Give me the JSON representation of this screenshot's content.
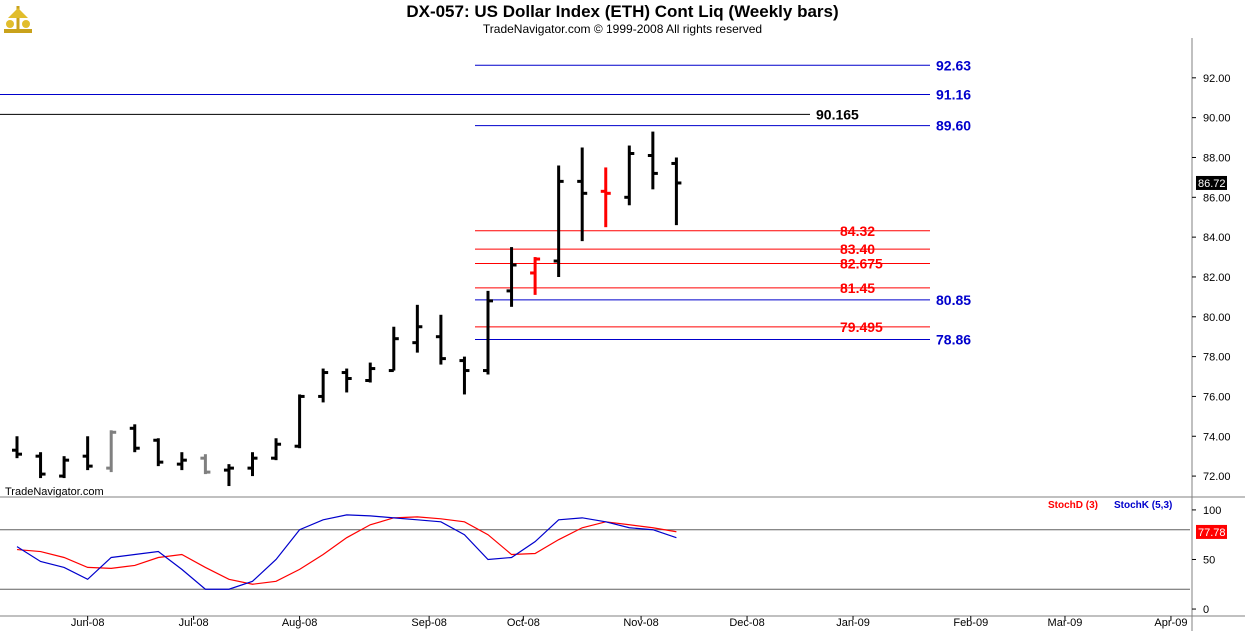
{
  "header": {
    "title": "DX-057:  US Dollar Index (ETH) Cont Liq  (Weekly bars)",
    "subtitle": "TradeNavigator.com © 1999-2008 All rights reserved"
  },
  "watermark": "TradeNavigator.com",
  "chart_data": [
    {
      "type": "ohlc",
      "ylim": [
        71,
        94
      ],
      "y_ticks": [
        "72.00",
        "74.00",
        "76.00",
        "78.00",
        "80.00",
        "82.00",
        "84.00",
        "86.00",
        "88.00",
        "90.00",
        "92.00"
      ],
      "x_ticks": [
        {
          "label": "Jun-08",
          "week": 3
        },
        {
          "label": "Jul-08",
          "week": 7.5
        },
        {
          "label": "Aug-08",
          "week": 12
        },
        {
          "label": "Sep-08",
          "week": 17.5
        },
        {
          "label": "Oct-08",
          "week": 21.5
        },
        {
          "label": "Nov-08",
          "week": 26.5
        },
        {
          "label": "Dec-08",
          "week": 31
        },
        {
          "label": "Jan-09",
          "week": 35.5
        },
        {
          "label": "Feb-09",
          "week": 40.5
        },
        {
          "label": "Mar-09",
          "week": 44.5
        },
        {
          "label": "Apr-09",
          "week": 49
        }
      ],
      "last_price": "86.72",
      "colors": {
        "up": "#000000",
        "down": "#000000",
        "red": "#ff0000",
        "gray": "#808080"
      },
      "bars": [
        {
          "o": 73.3,
          "h": 74.0,
          "l": 72.9,
          "c": 73.1,
          "color": "#000000"
        },
        {
          "o": 73.0,
          "h": 73.2,
          "l": 71.9,
          "c": 72.1,
          "color": "#000000"
        },
        {
          "o": 72.0,
          "h": 73.0,
          "l": 71.9,
          "c": 72.8,
          "color": "#000000"
        },
        {
          "o": 73.0,
          "h": 74.0,
          "l": 72.3,
          "c": 72.5,
          "color": "#000000"
        },
        {
          "o": 72.4,
          "h": 74.3,
          "l": 72.2,
          "c": 74.2,
          "color": "#808080"
        },
        {
          "o": 74.4,
          "h": 74.6,
          "l": 73.2,
          "c": 73.4,
          "color": "#000000"
        },
        {
          "o": 73.8,
          "h": 73.9,
          "l": 72.5,
          "c": 72.7,
          "color": "#000000"
        },
        {
          "o": 72.6,
          "h": 73.2,
          "l": 72.3,
          "c": 72.8,
          "color": "#000000"
        },
        {
          "o": 72.9,
          "h": 73.1,
          "l": 72.1,
          "c": 72.2,
          "color": "#808080"
        },
        {
          "o": 72.3,
          "h": 72.6,
          "l": 71.5,
          "c": 72.4,
          "color": "#000000"
        },
        {
          "o": 72.4,
          "h": 73.2,
          "l": 72.0,
          "c": 72.9,
          "color": "#000000"
        },
        {
          "o": 72.9,
          "h": 73.9,
          "l": 72.8,
          "c": 73.6,
          "color": "#000000"
        },
        {
          "o": 73.5,
          "h": 76.1,
          "l": 73.4,
          "c": 76.0,
          "color": "#000000"
        },
        {
          "o": 76.0,
          "h": 77.4,
          "l": 75.7,
          "c": 77.2,
          "color": "#000000"
        },
        {
          "o": 77.2,
          "h": 77.4,
          "l": 76.2,
          "c": 76.9,
          "color": "#000000"
        },
        {
          "o": 76.8,
          "h": 77.7,
          "l": 76.7,
          "c": 77.4,
          "color": "#000000"
        },
        {
          "o": 77.3,
          "h": 79.5,
          "l": 77.3,
          "c": 78.9,
          "color": "#000000"
        },
        {
          "o": 78.7,
          "h": 80.6,
          "l": 78.2,
          "c": 79.5,
          "color": "#000000"
        },
        {
          "o": 79.0,
          "h": 80.1,
          "l": 77.6,
          "c": 77.9,
          "color": "#000000"
        },
        {
          "o": 77.8,
          "h": 78.0,
          "l": 76.1,
          "c": 77.3,
          "color": "#000000"
        },
        {
          "o": 77.3,
          "h": 81.3,
          "l": 77.1,
          "c": 80.8,
          "color": "#000000"
        },
        {
          "o": 81.3,
          "h": 83.5,
          "l": 80.5,
          "c": 82.6,
          "color": "#000000"
        },
        {
          "o": 82.2,
          "h": 83.0,
          "l": 81.1,
          "c": 82.9,
          "color": "#ff0000"
        },
        {
          "o": 82.8,
          "h": 87.6,
          "l": 82.0,
          "c": 86.8,
          "color": "#000000"
        },
        {
          "o": 86.8,
          "h": 88.5,
          "l": 83.8,
          "c": 86.2,
          "color": "#000000"
        },
        {
          "o": 86.3,
          "h": 87.5,
          "l": 84.5,
          "c": 86.2,
          "color": "#ff0000"
        },
        {
          "o": 86.0,
          "h": 88.6,
          "l": 85.6,
          "c": 88.2,
          "color": "#000000"
        },
        {
          "o": 88.1,
          "h": 89.3,
          "l": 86.4,
          "c": 87.2,
          "color": "#000000"
        },
        {
          "o": 87.7,
          "h": 88.0,
          "l": 84.6,
          "c": 86.72,
          "color": "#000000"
        }
      ],
      "levels": [
        {
          "value": 92.63,
          "label": "92.63",
          "color": "#0000cc",
          "start": "recent"
        },
        {
          "value": 91.16,
          "label": "91.16",
          "color": "#0000cc",
          "start": "full"
        },
        {
          "value": 90.165,
          "label": "90.165",
          "color": "#000000",
          "start": "full"
        },
        {
          "value": 89.6,
          "label": "89.60",
          "color": "#0000cc",
          "start": "recent"
        },
        {
          "value": 84.32,
          "label": "84.32",
          "color": "#ff0000",
          "start": "recent"
        },
        {
          "value": 83.4,
          "label": "83.40",
          "color": "#ff0000",
          "start": "recent"
        },
        {
          "value": 82.675,
          "label": "82.675",
          "color": "#ff0000",
          "start": "recent"
        },
        {
          "value": 81.45,
          "label": "81.45",
          "color": "#ff0000",
          "start": "recent"
        },
        {
          "value": 80.85,
          "label": "80.85",
          "color": "#0000cc",
          "start": "recent"
        },
        {
          "value": 79.495,
          "label": "79.495",
          "color": "#ff0000",
          "start": "recent"
        },
        {
          "value": 78.86,
          "label": "78.86",
          "color": "#0000cc",
          "start": "recent"
        }
      ]
    },
    {
      "type": "line",
      "ylim": [
        -5,
        110
      ],
      "y_ticks": [
        "0",
        "50",
        "100"
      ],
      "ref_lines": [
        80,
        20
      ],
      "last_value": "77.78",
      "series": [
        {
          "name": "StochD (3)",
          "color": "#ff0000",
          "values": [
            60,
            58,
            52,
            42,
            41,
            44,
            52,
            55,
            42,
            30,
            25,
            28,
            40,
            55,
            72,
            85,
            92,
            93,
            91,
            88,
            75,
            55,
            56,
            70,
            82,
            88,
            85,
            82,
            78
          ]
        },
        {
          "name": "StochK (5,3)",
          "color": "#0000cc",
          "values": [
            63,
            48,
            42,
            30,
            52,
            55,
            58,
            40,
            20,
            20,
            28,
            50,
            80,
            90,
            95,
            94,
            92,
            90,
            88,
            75,
            50,
            52,
            68,
            90,
            92,
            88,
            82,
            80,
            72
          ]
        }
      ]
    }
  ]
}
